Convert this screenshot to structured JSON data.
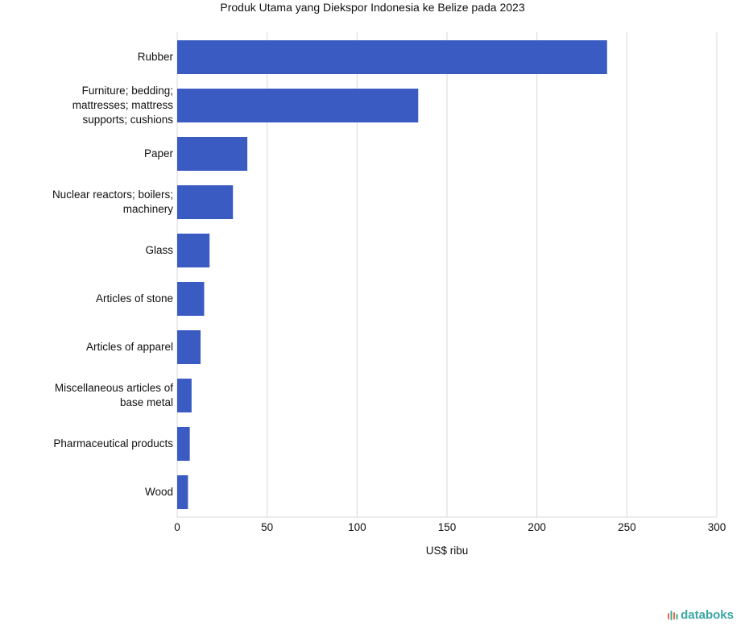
{
  "title": "Produk Utama yang Diekspor Indonesia ke Belize pada 2023",
  "brand": {
    "name": "databoks"
  },
  "colors": {
    "bar": "#3a5bc2",
    "grid": "#d9d9d9",
    "brand": "#3aa7a4",
    "brand_accent": "#ef6c3a"
  },
  "chart_data": {
    "type": "bar",
    "orientation": "horizontal",
    "title": "Produk Utama yang Diekspor Indonesia ke Belize pada 2023",
    "xlabel": "US$ ribu",
    "ylabel": "",
    "xlim": [
      0,
      300
    ],
    "xticks": [
      0,
      50,
      100,
      150,
      200,
      250,
      300
    ],
    "grid": true,
    "categories": [
      [
        "Rubber"
      ],
      [
        "Furniture; bedding;",
        "mattresses; mattress",
        "supports; cushions"
      ],
      [
        "Paper"
      ],
      [
        "Nuclear reactors; boilers;",
        "machinery"
      ],
      [
        "Glass"
      ],
      [
        "Articles of stone"
      ],
      [
        "Articles of apparel"
      ],
      [
        "Miscellaneous articles of",
        "base metal"
      ],
      [
        "Pharmaceutical products"
      ],
      [
        "Wood"
      ]
    ],
    "values": [
      239,
      134,
      39,
      31,
      18,
      15,
      13,
      8,
      7,
      6
    ]
  }
}
